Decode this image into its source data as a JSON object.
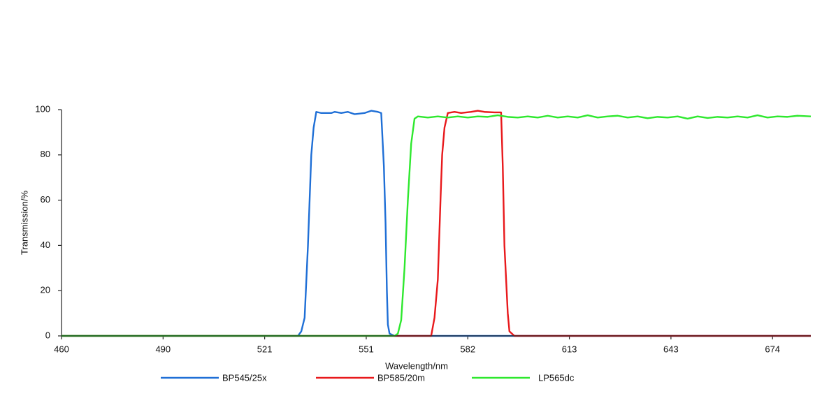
{
  "chart_data": {
    "type": "line",
    "x_label": "Wavelength/nm",
    "y_label": "Transmission/%",
    "xlim": [
      460,
      685
    ],
    "ylim": [
      0,
      100
    ],
    "xticks": [
      460,
      {
        "value": 490.5,
        "label": "490"
      },
      521,
      {
        "value": 551.5,
        "label": "551"
      },
      582,
      {
        "value": 612.5,
        "label": "613"
      },
      643,
      {
        "value": 673.5,
        "label": "674"
      }
    ],
    "yticks": [
      0,
      20,
      40,
      60,
      80,
      100
    ],
    "grid": false,
    "legend": "bottom",
    "series": [
      {
        "name": "BP545/25x",
        "color": "#1f6fd6",
        "x": [
          460,
          531,
          532,
          533,
          534,
          535,
          535.7,
          536.5,
          538,
          541,
          542,
          544,
          546,
          548,
          551,
          553,
          555,
          556,
          556.8,
          557.3,
          557.7,
          558,
          558.5,
          560,
          685
        ],
        "values": [
          0,
          0,
          2,
          8,
          40,
          80,
          92,
          99,
          98.5,
          98.5,
          99,
          98.5,
          99,
          98,
          98.5,
          99.5,
          99,
          98.5,
          75,
          50,
          20,
          5,
          1,
          0,
          0
        ]
      },
      {
        "name": "BP585/20m",
        "color": "#e8191c",
        "x": [
          460,
          571,
          572,
          573,
          573.8,
          574.3,
          575,
          576,
          578,
          580,
          583,
          585,
          587,
          590,
          592,
          592.5,
          593,
          594,
          594.5,
          596,
          685
        ],
        "values": [
          0,
          0,
          8,
          25,
          60,
          80,
          92,
          98.5,
          99,
          98.5,
          99,
          99.5,
          99,
          98.8,
          98.8,
          75,
          40,
          10,
          2,
          0,
          0
        ]
      },
      {
        "name": "LP565dc",
        "color": "#2ee82e",
        "x": [
          460,
          560,
          561,
          562,
          563,
          564,
          565,
          566,
          567,
          570,
          573,
          576,
          579,
          582,
          585,
          588,
          591,
          594,
          597,
          600,
          603,
          606,
          609,
          612,
          615,
          618,
          621,
          624,
          627,
          630,
          633,
          636,
          639,
          642,
          645,
          648,
          651,
          654,
          657,
          660,
          663,
          666,
          669,
          672,
          675,
          678,
          681,
          685
        ],
        "values": [
          0,
          0,
          1,
          7,
          30,
          60,
          85,
          96,
          97,
          96.5,
          97,
          96.5,
          97,
          96.5,
          97,
          96.8,
          97.5,
          96.8,
          96.5,
          97,
          96.5,
          97.3,
          96.5,
          97,
          96.5,
          97.5,
          96.5,
          97,
          97.3,
          96.5,
          97,
          96.2,
          96.8,
          96.5,
          97,
          96,
          97,
          96.3,
          96.8,
          96.5,
          97,
          96.5,
          97.5,
          96.5,
          97,
          96.8,
          97.3,
          97
        ]
      }
    ]
  }
}
